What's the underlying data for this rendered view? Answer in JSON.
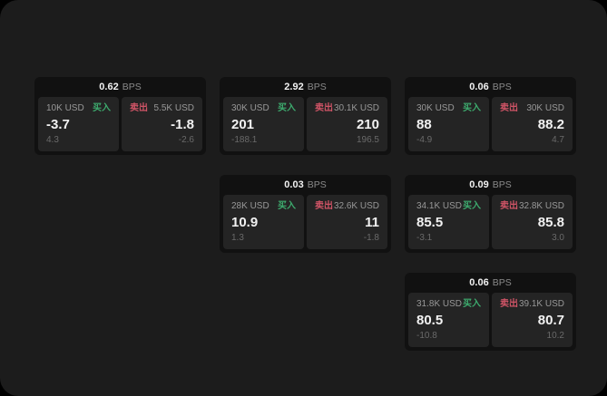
{
  "labels": {
    "buy": "买入",
    "sell": "卖出",
    "bps_unit": "BPS"
  },
  "colors": {
    "page_bg": "#000000",
    "panel_bg": "#1c1c1c",
    "card_bg": "#111111",
    "subpanel_bg": "#242424",
    "buy_accent": "#3dab6e",
    "sell_accent": "#cf5466",
    "value_text": "#f2f2f2",
    "size_text": "#989898",
    "change_text": "#6a6a6a"
  },
  "cards": [
    {
      "bps": "0.62",
      "buy": {
        "size": "10K USD",
        "value": "-3.7",
        "change": "4.3"
      },
      "sell": {
        "size": "5.5K USD",
        "value": "-1.8",
        "change": "-2.6"
      }
    },
    {
      "bps": "2.92",
      "buy": {
        "size": "30K USD",
        "value": "201",
        "change": "-188.1"
      },
      "sell": {
        "size": "30.1K USD",
        "value": "210",
        "change": "196.5"
      }
    },
    {
      "bps": "0.06",
      "buy": {
        "size": "30K USD",
        "value": "88",
        "change": "-4.9"
      },
      "sell": {
        "size": "30K USD",
        "value": "88.2",
        "change": "4.7"
      }
    },
    {
      "bps": "0.03",
      "buy": {
        "size": "28K USD",
        "value": "10.9",
        "change": "1.3"
      },
      "sell": {
        "size": "32.6K USD",
        "value": "11",
        "change": "-1.8"
      }
    },
    {
      "bps": "0.09",
      "buy": {
        "size": "34.1K USD",
        "value": "85.5",
        "change": "-3.1"
      },
      "sell": {
        "size": "32.8K USD",
        "value": "85.8",
        "change": "3.0"
      }
    },
    {
      "bps": "0.06",
      "buy": {
        "size": "31.8K USD",
        "value": "80.5",
        "change": "-10.8"
      },
      "sell": {
        "size": "39.1K USD",
        "value": "80.7",
        "change": "10.2"
      }
    }
  ]
}
